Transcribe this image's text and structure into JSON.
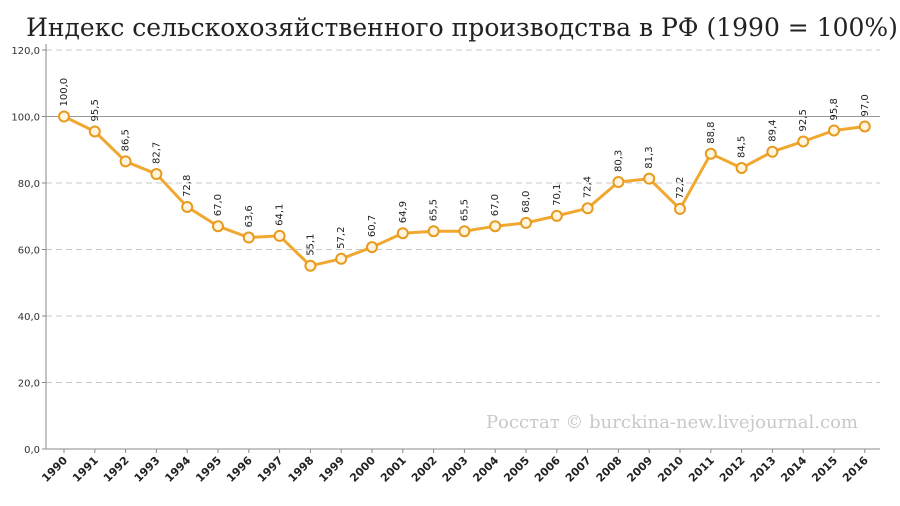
{
  "chart_data": {
    "type": "line",
    "title": "Индекс сельскохозяйственного производства в РФ (1990 = 100%)",
    "xlabel": "",
    "ylabel": "",
    "categories": [
      "1990",
      "1991",
      "1992",
      "1993",
      "1994",
      "1995",
      "1996",
      "1997",
      "1998",
      "1999",
      "2000",
      "2001",
      "2002",
      "2003",
      "2004",
      "2005",
      "2006",
      "2007",
      "2008",
      "2009",
      "2010",
      "2011",
      "2012",
      "2013",
      "2014",
      "2015",
      "2016"
    ],
    "series": [
      {
        "values": [
          100.0,
          95.5,
          86.5,
          82.7,
          72.8,
          67.0,
          63.6,
          64.1,
          55.1,
          57.2,
          60.7,
          64.9,
          65.5,
          65.5,
          67.0,
          68.0,
          70.1,
          72.4,
          80.3,
          81.3,
          72.2,
          88.8,
          84.5,
          89.4,
          92.5,
          95.8,
          97.0
        ],
        "labels": [
          "100,0",
          "95,5",
          "86,5",
          "82,7",
          "72,8",
          "67,0",
          "63,6",
          "64,1",
          "55,1",
          "57,2",
          "60,7",
          "64,9",
          "65,5",
          "65,5",
          "67,0",
          "68,0",
          "70,1",
          "72,4",
          "80,3",
          "81,3",
          "72,2",
          "88,8",
          "84,5",
          "89,4",
          "92,5",
          "95,8",
          "97,0"
        ]
      }
    ],
    "ylim": [
      0,
      120
    ],
    "yticks": [
      0,
      20,
      40,
      60,
      80,
      100,
      120
    ],
    "ytick_labels": [
      "0,0",
      "20,0",
      "40,0",
      "60,0",
      "80,0",
      "100,0",
      "120,0"
    ],
    "grid": "horizontal-dashed",
    "legend": "none",
    "colors": {
      "line": "#f0a830",
      "marker_fill": "#fff4dd",
      "marker_stroke": "#e89a1e",
      "grid": "#c8c8c8",
      "reference_line": "#999999"
    }
  },
  "watermark": "Росстат © burckina-new.livejournal.com"
}
